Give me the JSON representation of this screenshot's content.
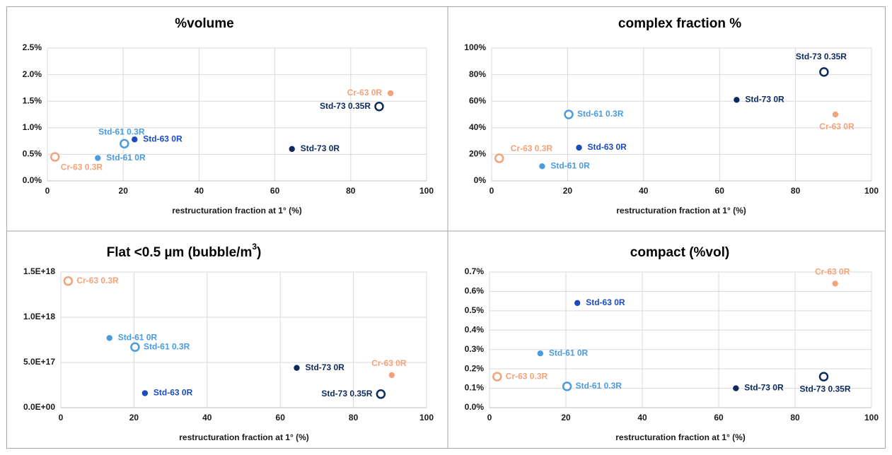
{
  "colors": {
    "Std-73": "#0e2a5c",
    "Std-63": "#1a4cc0",
    "Std-61": "#4a9be0",
    "Cr-63": "#f4a27a",
    "grid": "#d9d9d9",
    "panel_border": "#a6a6a6"
  },
  "chart_data": [
    {
      "type": "scatter",
      "title": "%volume",
      "xlabel": "restructuration fraction at 1° (%)",
      "ylabel": "",
      "xlim": [
        0,
        100
      ],
      "ylim": [
        0,
        0.025
      ],
      "x_ticks": [
        "0",
        "20",
        "40",
        "60",
        "80",
        "100"
      ],
      "y_ticks": [
        "0.0%",
        "0.5%",
        "1.0%",
        "1.5%",
        "2.0%",
        "2.5%"
      ],
      "grid": true,
      "points": [
        {
          "label": "Std-73 0R",
          "group": "Std-73",
          "marker": "filled",
          "x": 64.5,
          "y": 0.006,
          "label_pos": "right"
        },
        {
          "label": "Std-73 0.35R",
          "group": "Std-73",
          "marker": "open",
          "x": 87.5,
          "y": 0.014,
          "label_pos": "left"
        },
        {
          "label": "Std-63 0R",
          "group": "Std-63",
          "marker": "filled",
          "x": 23,
          "y": 0.0078,
          "label_pos": "right"
        },
        {
          "label": "Std-61 0R",
          "group": "Std-61",
          "marker": "filled",
          "x": 13.3,
          "y": 0.0043,
          "label_pos": "right"
        },
        {
          "label": "Std-61 0.3R",
          "group": "Std-61",
          "marker": "open",
          "x": 20.3,
          "y": 0.007,
          "label_pos": "above"
        },
        {
          "label": "Cr-63 0R",
          "group": "Cr-63",
          "marker": "filled",
          "x": 90.5,
          "y": 0.0165,
          "label_pos": "left"
        },
        {
          "label": "Cr-63 0.3R",
          "group": "Cr-63",
          "marker": "open",
          "x": 2,
          "y": 0.0045,
          "label_pos": "below-right"
        }
      ]
    },
    {
      "type": "scatter",
      "title": "complex fraction %",
      "xlabel": "restructuration fraction at 1° (%)",
      "ylabel": "",
      "xlim": [
        0,
        100
      ],
      "ylim": [
        0,
        100
      ],
      "x_ticks": [
        "0",
        "20",
        "40",
        "60",
        "80",
        "100"
      ],
      "y_ticks": [
        "0%",
        "20%",
        "40%",
        "60%",
        "80%",
        "100%"
      ],
      "grid": true,
      "points": [
        {
          "label": "Std-73 0R",
          "group": "Std-73",
          "marker": "filled",
          "x": 64.5,
          "y": 61,
          "label_pos": "right"
        },
        {
          "label": "Std-73 0.35R",
          "group": "Std-73",
          "marker": "open",
          "x": 87.5,
          "y": 82,
          "label_pos": "above-left"
        },
        {
          "label": "Std-63 0R",
          "group": "Std-63",
          "marker": "filled",
          "x": 23,
          "y": 25,
          "label_pos": "right"
        },
        {
          "label": "Std-61 0R",
          "group": "Std-61",
          "marker": "filled",
          "x": 13.3,
          "y": 11,
          "label_pos": "right"
        },
        {
          "label": "Std-61 0.3R",
          "group": "Std-61",
          "marker": "open",
          "x": 20.3,
          "y": 50,
          "label_pos": "right"
        },
        {
          "label": "Cr-63 0R",
          "group": "Cr-63",
          "marker": "filled",
          "x": 90.5,
          "y": 50,
          "label_pos": "below"
        },
        {
          "label": "Cr-63 0.3R",
          "group": "Cr-63",
          "marker": "open",
          "x": 2,
          "y": 17,
          "label_pos": "above-right"
        }
      ]
    },
    {
      "type": "scatter",
      "title": "Flat <0.5 µm (bubble/m",
      "title_sup": "3",
      "title_end": ")",
      "xlabel": "restructuration fraction at 1° (%)",
      "ylabel": "",
      "xlim": [
        0,
        100
      ],
      "ylim": [
        0,
        1.5e+18
      ],
      "x_ticks": [
        "0",
        "20",
        "40",
        "60",
        "80",
        "100"
      ],
      "y_ticks": [
        "0.0E+00",
        "5.0E+17",
        "1.0E+18",
        "1.5E+18"
      ],
      "grid": true,
      "points": [
        {
          "label": "Std-73 0R",
          "group": "Std-73",
          "marker": "filled",
          "x": 64.5,
          "y": 4.4e+17,
          "label_pos": "right"
        },
        {
          "label": "Std-73 0.35R",
          "group": "Std-73",
          "marker": "open",
          "x": 87.5,
          "y": 1.5e+17,
          "label_pos": "left"
        },
        {
          "label": "Std-63 0R",
          "group": "Std-63",
          "marker": "filled",
          "x": 23,
          "y": 1.6e+17,
          "label_pos": "right"
        },
        {
          "label": "Std-61 0R",
          "group": "Std-61",
          "marker": "filled",
          "x": 13.3,
          "y": 7.7e+17,
          "label_pos": "right"
        },
        {
          "label": "Std-61 0.3R",
          "group": "Std-61",
          "marker": "open",
          "x": 20.3,
          "y": 6.7e+17,
          "label_pos": "right"
        },
        {
          "label": "Cr-63 0R",
          "group": "Cr-63",
          "marker": "filled",
          "x": 90.5,
          "y": 3.6e+17,
          "label_pos": "above"
        },
        {
          "label": "Cr-63 0.3R",
          "group": "Cr-63",
          "marker": "open",
          "x": 2,
          "y": 1.4e+18,
          "label_pos": "right"
        }
      ]
    },
    {
      "type": "scatter",
      "title": "compact  (%vol)",
      "xlabel": "restructuration fraction at 1° (%)",
      "ylabel": "",
      "xlim": [
        0,
        100
      ],
      "ylim": [
        0,
        0.007
      ],
      "x_ticks": [
        "0",
        "20",
        "40",
        "60",
        "80",
        "100"
      ],
      "y_ticks": [
        "0.0%",
        "0.1%",
        "0.2%",
        "0.3%",
        "0.4%",
        "0.5%",
        "0.6%",
        "0.7%"
      ],
      "grid": true,
      "points": [
        {
          "label": "Std-73 0R",
          "group": "Std-73",
          "marker": "filled",
          "x": 64.5,
          "y": 0.001,
          "label_pos": "right"
        },
        {
          "label": "Std-73 0.35R",
          "group": "Std-73",
          "marker": "open",
          "x": 87.5,
          "y": 0.0016,
          "label_pos": "below"
        },
        {
          "label": "Std-63 0R",
          "group": "Std-63",
          "marker": "filled",
          "x": 23,
          "y": 0.0054,
          "label_pos": "right"
        },
        {
          "label": "Std-61 0R",
          "group": "Std-61",
          "marker": "filled",
          "x": 13.3,
          "y": 0.0028,
          "label_pos": "right"
        },
        {
          "label": "Std-61 0.3R",
          "group": "Std-61",
          "marker": "open",
          "x": 20.3,
          "y": 0.0011,
          "label_pos": "right"
        },
        {
          "label": "Cr-63 0R",
          "group": "Cr-63",
          "marker": "filled",
          "x": 90.5,
          "y": 0.0064,
          "label_pos": "above"
        },
        {
          "label": "Cr-63 0.3R",
          "group": "Cr-63",
          "marker": "open",
          "x": 2,
          "y": 0.0016,
          "label_pos": "right"
        }
      ]
    }
  ]
}
